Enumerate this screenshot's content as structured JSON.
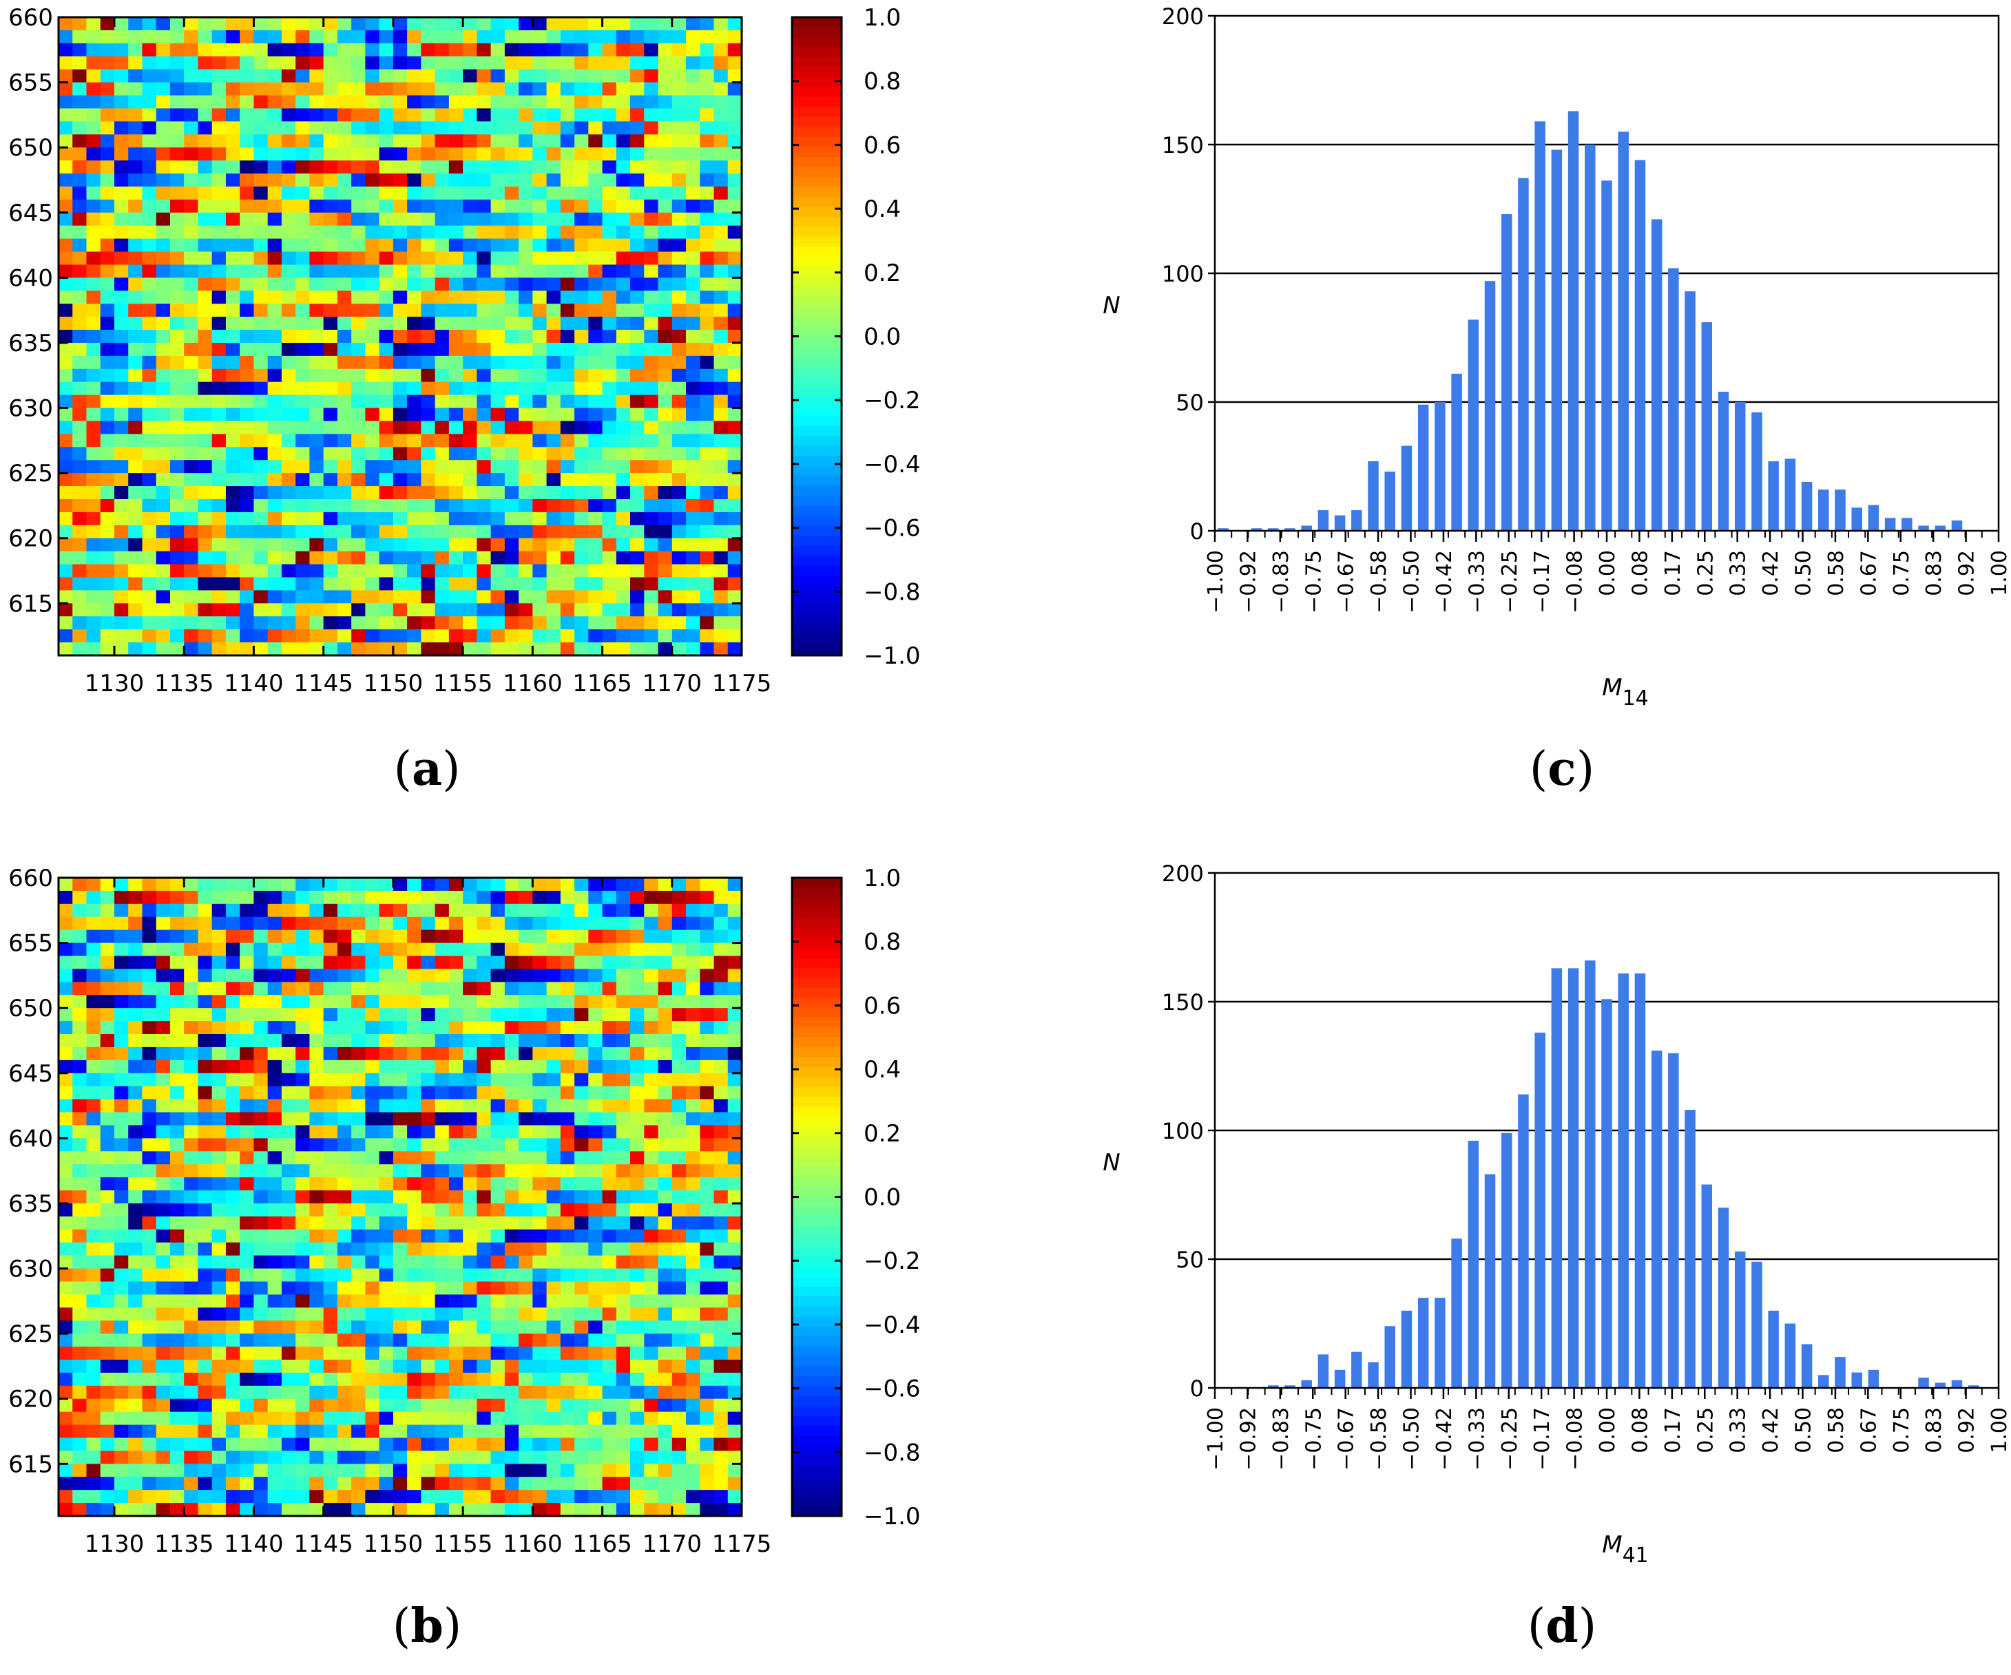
{
  "chart_data": [
    {
      "id": "a",
      "type": "heatmap",
      "panel_label": "a",
      "title": "",
      "x_ticks": [
        1130,
        1135,
        1140,
        1145,
        1150,
        1155,
        1160,
        1165,
        1170,
        1175
      ],
      "y_ticks": [
        615,
        620,
        625,
        630,
        635,
        640,
        645,
        650,
        655,
        660
      ],
      "xlim": [
        1126,
        1175
      ],
      "ylim": [
        611,
        660
      ],
      "grid_cells": [
        49,
        49
      ],
      "colorbar": {
        "colormap": "jet",
        "range": [
          -1.0,
          1.0
        ],
        "ticks": [
          "1.0",
          "0.8",
          "0.6",
          "0.4",
          "0.2",
          "0.0",
          "−0.2",
          "−0.4",
          "−0.6",
          "−0.8",
          "−1.0"
        ]
      },
      "seed": 1234
    },
    {
      "id": "b",
      "type": "heatmap",
      "panel_label": "b",
      "title": "",
      "x_ticks": [
        1130,
        1135,
        1140,
        1145,
        1150,
        1155,
        1160,
        1165,
        1170,
        1175
      ],
      "y_ticks": [
        615,
        620,
        625,
        630,
        635,
        640,
        645,
        650,
        655,
        660
      ],
      "xlim": [
        1126,
        1175
      ],
      "ylim": [
        611,
        660
      ],
      "grid_cells": [
        49,
        49
      ],
      "colorbar": {
        "colormap": "jet",
        "range": [
          -1.0,
          1.0
        ],
        "ticks": [
          "1.0",
          "0.8",
          "0.6",
          "0.4",
          "0.2",
          "0.0",
          "−0.2",
          "−0.4",
          "−0.6",
          "−0.8",
          "−1.0"
        ]
      },
      "seed": 98765
    },
    {
      "id": "c",
      "type": "bar",
      "panel_label": "c",
      "ylabel": "N",
      "xlabel_base": "M",
      "xlabel_sub": "14",
      "ylim": [
        0,
        200
      ],
      "y_ticks": [
        0,
        50,
        100,
        150,
        200
      ],
      "grid": true,
      "bar_color": "#3d7be8",
      "x_range": [
        -1.0,
        1.0
      ],
      "x_ticks": [
        "−1.00",
        "−0.92",
        "−0.83",
        "−0.75",
        "−0.67",
        "−0.58",
        "−0.50",
        "−0.42",
        "−0.33",
        "−0.25",
        "−0.17",
        "−0.08",
        "0.00",
        "0.08",
        "0.17",
        "0.25",
        "0.33",
        "0.42",
        "0.50",
        "0.58",
        "0.67",
        "0.75",
        "0.83",
        "0.92",
        "1.00"
      ],
      "values": [
        1,
        0,
        1,
        1,
        1,
        2,
        8,
        6,
        8,
        27,
        23,
        33,
        49,
        50,
        61,
        82,
        97,
        123,
        137,
        159,
        148,
        163,
        150,
        136,
        155,
        144,
        121,
        102,
        93,
        81,
        54,
        50,
        46,
        27,
        28,
        19,
        16,
        16,
        9,
        10,
        5,
        5,
        2,
        2,
        4,
        0,
        0
      ]
    },
    {
      "id": "d",
      "type": "bar",
      "panel_label": "d",
      "ylabel": "N",
      "xlabel_base": "M",
      "xlabel_sub": "41",
      "ylim": [
        0,
        200
      ],
      "y_ticks": [
        0,
        50,
        100,
        150,
        200
      ],
      "grid": true,
      "bar_color": "#3d7be8",
      "x_range": [
        -1.0,
        1.0
      ],
      "x_ticks": [
        "−1.00",
        "−0.92",
        "−0.83",
        "−0.75",
        "−0.67",
        "−0.58",
        "−0.50",
        "−0.42",
        "−0.33",
        "−0.25",
        "−0.17",
        "−0.08",
        "0.00",
        "0.08",
        "0.17",
        "0.25",
        "0.33",
        "0.42",
        "0.50",
        "0.58",
        "0.67",
        "0.75",
        "0.83",
        "0.92",
        "1.00"
      ],
      "values": [
        0,
        0,
        0,
        1,
        1,
        3,
        13,
        7,
        14,
        10,
        24,
        30,
        35,
        35,
        58,
        96,
        83,
        99,
        114,
        138,
        163,
        163,
        166,
        151,
        161,
        161,
        131,
        130,
        108,
        79,
        70,
        53,
        49,
        30,
        25,
        17,
        5,
        12,
        6,
        7,
        0,
        0,
        4,
        2,
        3,
        1,
        0
      ]
    }
  ]
}
